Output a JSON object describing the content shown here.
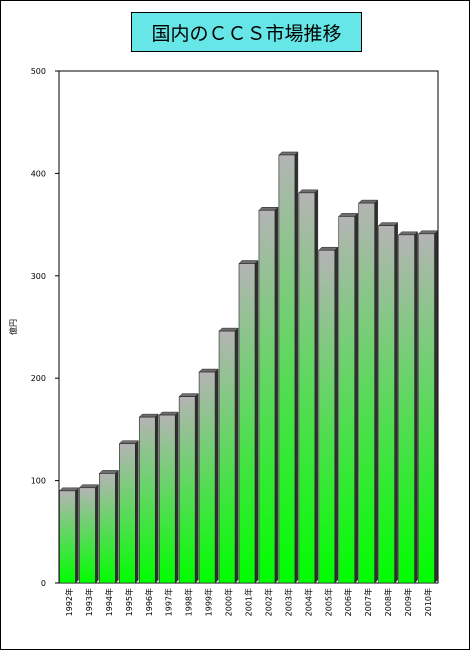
{
  "chart_data": {
    "type": "bar",
    "title": "国内のＣＣＳ市場推移",
    "ylabel": "億円",
    "xlabel": "",
    "ylim": [
      0,
      500
    ],
    "yticks": [
      0,
      100,
      200,
      300,
      400,
      500
    ],
    "grid": false,
    "legend": "none",
    "categories": [
      "1992年",
      "1993年",
      "1994年",
      "1995年",
      "1996年",
      "1997年",
      "1998年",
      "1999年",
      "2000年",
      "2001年",
      "2002年",
      "2003年",
      "2004年",
      "2005年",
      "2006年",
      "2007年",
      "2008年",
      "2009年",
      "2010年"
    ],
    "values": [
      90,
      93,
      107,
      136,
      162,
      164,
      182,
      206,
      246,
      312,
      364,
      418,
      381,
      325,
      358,
      371,
      349,
      340,
      341
    ]
  },
  "colors": {
    "title_background": "#66e6e6",
    "bar_top": "#b4b4b4",
    "bar_bottom": "#00ff00",
    "bar_side": "#2f2f2f",
    "axis": "#000000"
  }
}
